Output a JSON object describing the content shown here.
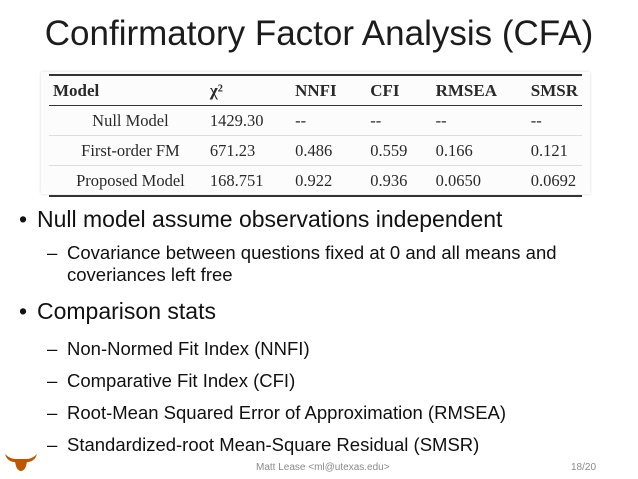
{
  "title": "Confirmatory Factor Analysis (CFA)",
  "table": {
    "headers": [
      "Model",
      "χ²",
      "NNFI",
      "CFI",
      "RMSEA",
      "SMSR"
    ],
    "rows": [
      [
        "Null Model",
        "1429.30",
        "--",
        "--",
        "--",
        "--"
      ],
      [
        "First-order FM",
        "671.23",
        "0.486",
        "0.559",
        "0.166",
        "0.121"
      ],
      [
        "Proposed Model",
        "168.751",
        "0.922",
        "0.936",
        "0.0650",
        "0.0692"
      ]
    ]
  },
  "bullets": [
    {
      "text": "Null model assume observations independent",
      "subs": [
        "Covariance between questions fixed at 0 and all means and coveriances left free"
      ]
    },
    {
      "text": "Comparison stats",
      "subs": [
        "Non-Normed Fit Index (NNFI)",
        "Comparative Fit Index (CFI)",
        "Root-Mean Squared Error of Approximation (RMSEA)",
        "Standardized-root Mean-Square Residual (SMSR)"
      ]
    }
  ],
  "markers": {
    "bullet": "•",
    "dash": "–"
  },
  "footer": {
    "author": "Matt Lease <ml@utexas.edu>",
    "page": "18/20"
  },
  "colors": {
    "logo": "#bf5700"
  },
  "icons": {
    "logo": "longhorn-logo-icon"
  }
}
